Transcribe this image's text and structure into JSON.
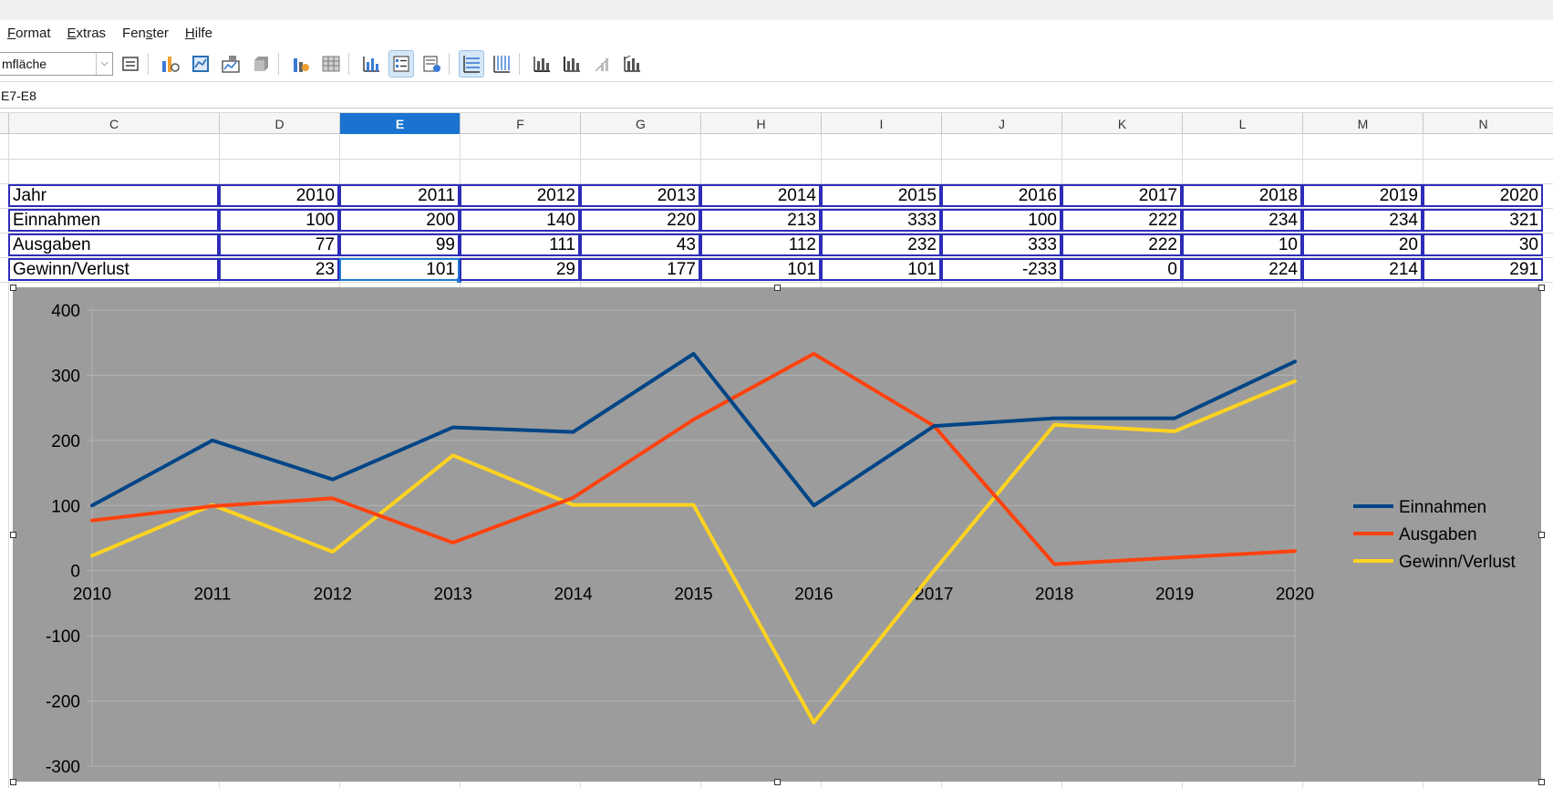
{
  "menu": [
    {
      "label": "Format",
      "key": "F",
      "rest": "ormat"
    },
    {
      "label": "Extras",
      "key": "E",
      "rest": "xtras"
    },
    {
      "label": "Fenster",
      "pre": "Fen",
      "key": "s",
      "rest": "ter"
    },
    {
      "label": "Hilfe",
      "key": "H",
      "rest": "ilfe"
    }
  ],
  "toolbar": {
    "element_select_value": "mfläche",
    "icons": [
      "format-selection-icon",
      "chart-type-icon",
      "data-table-icon",
      "data-ranges-icon",
      "3d-view-icon",
      "legend-on-off-icon",
      "text-scale-icon",
      "horizontal-grids-icon",
      "legend-icon",
      "title-icon",
      "horizontal-grid-icon",
      "vertical-grid-icon",
      "x-axis-icon",
      "y-axis-icon",
      "z-axis-icon",
      "all-axes-icon"
    ]
  },
  "namebox": {
    "value": "E7-E8"
  },
  "columns": [
    "C",
    "D",
    "E",
    "F",
    "G",
    "H",
    "I",
    "J",
    "K",
    "L",
    "M",
    "N"
  ],
  "selected_column": "E",
  "table": {
    "rows": [
      {
        "label": "Jahr",
        "values": [
          "2010",
          "2011",
          "2012",
          "2013",
          "2014",
          "2015",
          "2016",
          "2017",
          "2018",
          "2019",
          "2020"
        ]
      },
      {
        "label": "Einnahmen",
        "values": [
          "100",
          "200",
          "140",
          "220",
          "213",
          "333",
          "100",
          "222",
          "234",
          "234",
          "321"
        ]
      },
      {
        "label": "Ausgaben",
        "values": [
          "77",
          "99",
          "111",
          "43",
          "112",
          "232",
          "333",
          "222",
          "10",
          "20",
          "30"
        ]
      },
      {
        "label": "Gewinn/Verlust",
        "values": [
          "23",
          "101",
          "29",
          "177",
          "101",
          "101",
          "-233",
          "0",
          "224",
          "214",
          "291"
        ]
      }
    ],
    "cursor_cell": {
      "row": 3,
      "col": 1
    }
  },
  "colors": {
    "einnahmen": "#004586",
    "ausgaben": "#ff420e",
    "gewinn": "#ffd320",
    "plot_bg": "#9c9c9c",
    "gridline": "#b3b3b3",
    "selection": "#1e7bd6"
  },
  "chart_data": {
    "type": "line",
    "x": [
      2010,
      2011,
      2012,
      2013,
      2014,
      2015,
      2016,
      2017,
      2018,
      2019,
      2020
    ],
    "series": [
      {
        "name": "Einnahmen",
        "values": [
          100,
          200,
          140,
          220,
          213,
          333,
          100,
          222,
          234,
          234,
          321
        ]
      },
      {
        "name": "Ausgaben",
        "values": [
          77,
          99,
          111,
          43,
          112,
          232,
          333,
          222,
          10,
          20,
          30
        ]
      },
      {
        "name": "Gewinn/Verlust",
        "values": [
          23,
          101,
          29,
          177,
          101,
          101,
          -233,
          0,
          224,
          214,
          291
        ]
      }
    ],
    "ylim": [
      -300,
      400
    ],
    "yticks": [
      "400",
      "300",
      "200",
      "100",
      "0",
      "-100",
      "-200",
      "-300"
    ],
    "ytick_values": [
      400,
      300,
      200,
      100,
      0,
      -100,
      -200,
      -300
    ],
    "xticks": [
      "2010",
      "2011",
      "2012",
      "2013",
      "2014",
      "2015",
      "2016",
      "2017",
      "2018",
      "2019",
      "2020"
    ],
    "title": "",
    "xlabel": "",
    "ylabel": "",
    "grid": true,
    "legend_position": "right"
  }
}
